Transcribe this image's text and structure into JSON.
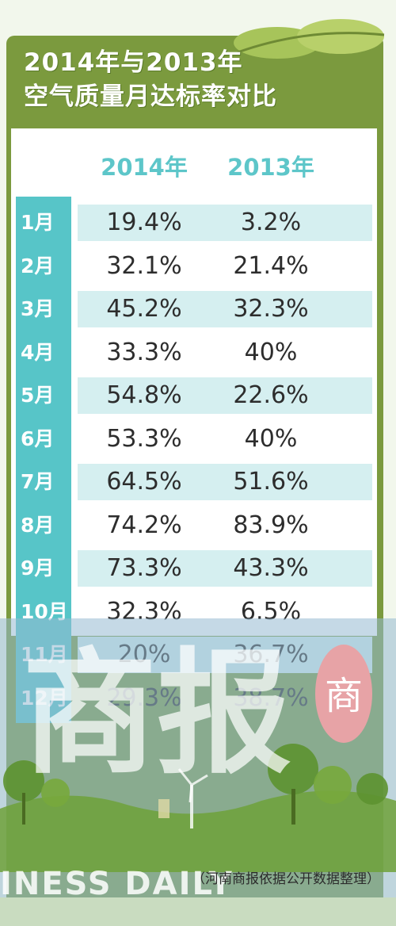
{
  "title": {
    "line1": "2014年与2013年",
    "line2": "空气质量月达标率对比"
  },
  "chart_data": {
    "type": "table",
    "columns": [
      "2014年",
      "2013年"
    ],
    "rows": [
      {
        "month": "1月",
        "y2014": "19.4%",
        "y2013": "3.2%"
      },
      {
        "month": "2月",
        "y2014": "32.1%",
        "y2013": "21.4%"
      },
      {
        "month": "3月",
        "y2014": "45.2%",
        "y2013": "32.3%"
      },
      {
        "month": "4月",
        "y2014": "33.3%",
        "y2013": "40%"
      },
      {
        "month": "5月",
        "y2014": "54.8%",
        "y2013": "22.6%"
      },
      {
        "month": "6月",
        "y2014": "53.3%",
        "y2013": "40%"
      },
      {
        "month": "7月",
        "y2014": "64.5%",
        "y2013": "51.6%"
      },
      {
        "month": "8月",
        "y2014": "74.2%",
        "y2013": "83.9%"
      },
      {
        "month": "9月",
        "y2014": "73.3%",
        "y2013": "43.3%"
      },
      {
        "month": "10月",
        "y2014": "32.3%",
        "y2013": "6.5%"
      },
      {
        "month": "11月",
        "y2014": "20%",
        "y2013": "36.7%"
      },
      {
        "month": "12月",
        "y2014": "29.3%",
        "y2013": "38.7%"
      }
    ]
  },
  "watermark": {
    "cn": "商报",
    "latin": "INESS DAILY",
    "seal_char": "商"
  },
  "credit": "（河南商报依据公开数据整理）",
  "colors": {
    "frame_green": "#7b9a3e",
    "accent_teal": "#57c5c8",
    "row_shade": "#d5eff0",
    "seal_red": "#e7a3a6"
  }
}
